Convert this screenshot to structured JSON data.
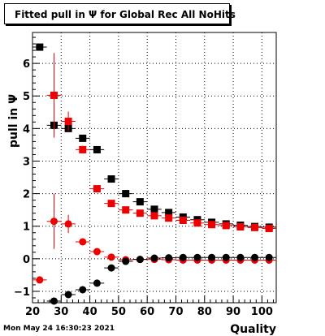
{
  "header": {
    "title": "Fitted pull in  Ψ  for Global Rec All NoHits"
  },
  "footer": {
    "timestamp": "Mon May 24 16:30:23 2021"
  },
  "colors": {
    "series_black": "#000000",
    "series_red": "#ee0000",
    "grid": "#000000"
  },
  "chart_data": {
    "type": "scatter",
    "title": "Fitted pull in  Ψ  for Global Rec All NoHits",
    "xlabel": "Quality",
    "ylabel": "pull in  Ψ",
    "xlim": [
      20,
      105
    ],
    "ylim": [
      -1.35,
      6.95
    ],
    "x_ticks": [
      20,
      30,
      40,
      50,
      60,
      70,
      80,
      90,
      100
    ],
    "x_tick_labels": [
      "20",
      "30",
      "40",
      "50",
      "60",
      "70",
      "80",
      "90",
      "100"
    ],
    "y_ticks": [
      -1,
      0,
      1,
      2,
      3,
      4,
      5,
      6
    ],
    "y_tick_labels": [
      "−1",
      "0",
      "1",
      "2",
      "3",
      "4",
      "5",
      "6"
    ],
    "x": [
      22.5,
      27.5,
      32.5,
      37.5,
      42.5,
      47.5,
      52.5,
      57.5,
      62.5,
      67.5,
      72.5,
      77.5,
      82.5,
      87.5,
      92.5,
      97.5,
      102.5
    ],
    "grid": true,
    "legend": "none",
    "series": [
      {
        "marker": "square",
        "color": "#000000",
        "values": [
          6.5,
          4.1,
          4.0,
          3.7,
          3.35,
          2.45,
          2.0,
          1.75,
          1.52,
          1.42,
          1.28,
          1.2,
          1.12,
          1.07,
          1.03,
          0.99,
          0.97
        ],
        "yerr": [
          0.08,
          0.15,
          0.1,
          0.06,
          0.04,
          0.03,
          0.03,
          0.02,
          0.02,
          0.02,
          0.02,
          0.02,
          0.02,
          0.02,
          0.02,
          0.02,
          0.02
        ]
      },
      {
        "marker": "square",
        "color": "#ee0000",
        "values": [
          null,
          5.02,
          4.22,
          3.35,
          2.15,
          1.7,
          1.5,
          1.4,
          1.32,
          1.25,
          1.18,
          1.1,
          1.05,
          1.02,
          0.98,
          0.96,
          0.93
        ],
        "yerr": [
          null,
          1.3,
          0.3,
          0.12,
          0.06,
          0.04,
          0.03,
          0.03,
          0.02,
          0.02,
          0.02,
          0.02,
          0.02,
          0.02,
          0.02,
          0.02,
          0.02
        ]
      },
      {
        "marker": "circle",
        "color": "#ee0000",
        "values": [
          -0.65,
          1.15,
          1.07,
          0.52,
          0.22,
          0.05,
          -0.03,
          -0.02,
          -0.02,
          -0.03,
          -0.04,
          -0.04,
          -0.04,
          -0.04,
          -0.04,
          -0.04,
          -0.04
        ],
        "yerr": [
          0.05,
          0.85,
          0.28,
          0.06,
          0.04,
          0.03,
          0.02,
          0.02,
          0.02,
          0.02,
          0.02,
          0.02,
          0.02,
          0.02,
          0.02,
          0.02,
          0.02
        ]
      },
      {
        "marker": "circle",
        "color": "#000000",
        "values": [
          null,
          -1.3,
          -1.1,
          -0.95,
          -0.75,
          -0.28,
          -0.08,
          -0.02,
          0.02,
          0.03,
          0.04,
          0.04,
          0.04,
          0.04,
          0.04,
          0.04,
          0.04
        ],
        "yerr": [
          null,
          0.05,
          0.05,
          0.04,
          0.03,
          0.03,
          0.02,
          0.02,
          0.02,
          0.02,
          0.02,
          0.02,
          0.02,
          0.02,
          0.02,
          0.02,
          0.02
        ]
      }
    ]
  }
}
